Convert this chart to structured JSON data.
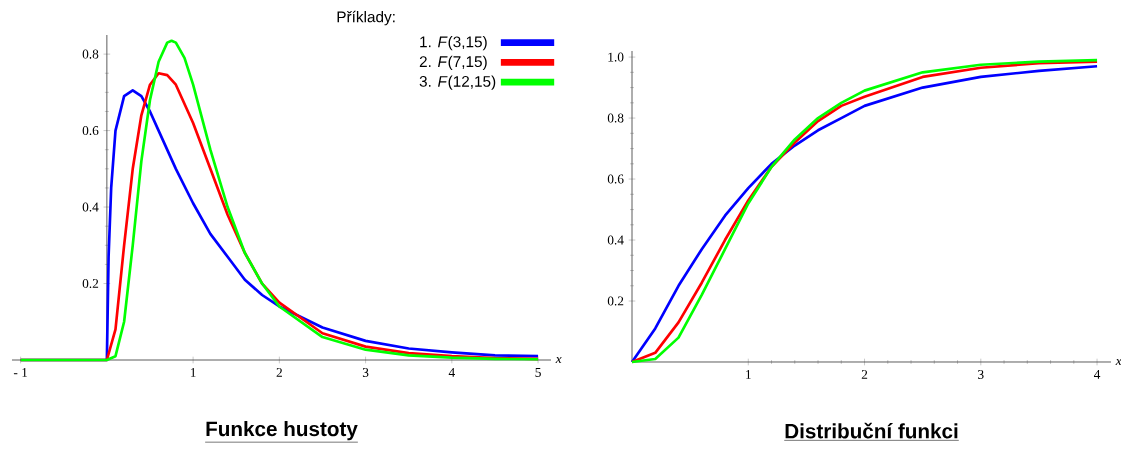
{
  "chart_data": [
    {
      "type": "line",
      "title": "Funkce hustoty",
      "xlabel": "x",
      "legend": "top right",
      "legend_title": "Příklady:",
      "xlim": [
        -1.1,
        5.15
      ],
      "ylim": [
        0,
        0.85
      ],
      "xticks": [
        {
          "value": -1,
          "label": "- 1"
        },
        1,
        2,
        3,
        4,
        5
      ],
      "yticks": [
        0.2,
        0.4,
        0.6,
        0.8
      ],
      "series": [
        {
          "name": "1. *F*(3,15)",
          "color": "#0000ff",
          "x": [
            -1,
            0,
            0.02,
            0.05,
            0.1,
            0.2,
            0.3,
            0.4,
            0.5,
            0.6,
            0.8,
            1,
            1.2,
            1.4,
            1.6,
            1.8,
            2,
            2.5,
            3,
            3.5,
            4,
            4.5,
            5
          ],
          "values": [
            0,
            0,
            0.27,
            0.45,
            0.6,
            0.69,
            0.705,
            0.69,
            0.65,
            0.6,
            0.5,
            0.41,
            0.33,
            0.27,
            0.21,
            0.17,
            0.14,
            0.085,
            0.05,
            0.03,
            0.02,
            0.012,
            0.01
          ]
        },
        {
          "name": "2. *F*(7,15)",
          "color": "#ff0000",
          "x": [
            -1,
            0,
            0.1,
            0.2,
            0.3,
            0.4,
            0.5,
            0.6,
            0.7,
            0.8,
            1,
            1.2,
            1.4,
            1.6,
            1.8,
            2,
            2.5,
            3,
            3.5,
            4,
            4.5,
            5
          ],
          "values": [
            0,
            0,
            0.08,
            0.3,
            0.5,
            0.64,
            0.72,
            0.75,
            0.745,
            0.72,
            0.62,
            0.5,
            0.38,
            0.28,
            0.2,
            0.15,
            0.07,
            0.035,
            0.018,
            0.01,
            0.005,
            0.003
          ]
        },
        {
          "name": "3. *F*(12,15)",
          "color": "#00ff00",
          "x": [
            -1,
            0,
            0.1,
            0.2,
            0.3,
            0.4,
            0.5,
            0.6,
            0.7,
            0.75,
            0.8,
            0.9,
            1,
            1.2,
            1.4,
            1.6,
            1.8,
            2,
            2.5,
            3,
            3.5,
            4,
            4.5,
            5
          ],
          "values": [
            0,
            0,
            0.01,
            0.1,
            0.3,
            0.52,
            0.68,
            0.78,
            0.83,
            0.835,
            0.83,
            0.79,
            0.72,
            0.55,
            0.4,
            0.28,
            0.2,
            0.14,
            0.06,
            0.027,
            0.012,
            0.006,
            0.003,
            0.002
          ]
        }
      ]
    },
    {
      "type": "line",
      "title": "Distribuční funkci",
      "xlabel": "x",
      "xlim": [
        0,
        4.12
      ],
      "ylim": [
        0,
        1.02
      ],
      "xticks": [
        1,
        2,
        3,
        4
      ],
      "yticks": [
        0.2,
        0.4,
        0.6,
        0.8,
        {
          "value": 1,
          "label": "1.0"
        }
      ],
      "x": [
        0,
        0.2,
        0.4,
        0.6,
        0.8,
        1,
        1.2,
        1.4,
        1.6,
        1.8,
        2,
        2.5,
        3,
        3.5,
        4
      ],
      "series": [
        {
          "color": "#0000ff",
          "values": [
            0,
            0.11,
            0.25,
            0.37,
            0.48,
            0.57,
            0.65,
            0.71,
            0.76,
            0.8,
            0.84,
            0.9,
            0.935,
            0.955,
            0.97
          ]
        },
        {
          "color": "#ff0000",
          "values": [
            0,
            0.03,
            0.13,
            0.26,
            0.4,
            0.53,
            0.64,
            0.72,
            0.79,
            0.84,
            0.87,
            0.935,
            0.965,
            0.98,
            0.985
          ]
        },
        {
          "color": "#00ff00",
          "values": [
            0,
            0.01,
            0.08,
            0.22,
            0.37,
            0.52,
            0.64,
            0.73,
            0.8,
            0.85,
            0.89,
            0.95,
            0.975,
            0.985,
            0.99
          ]
        }
      ]
    }
  ]
}
